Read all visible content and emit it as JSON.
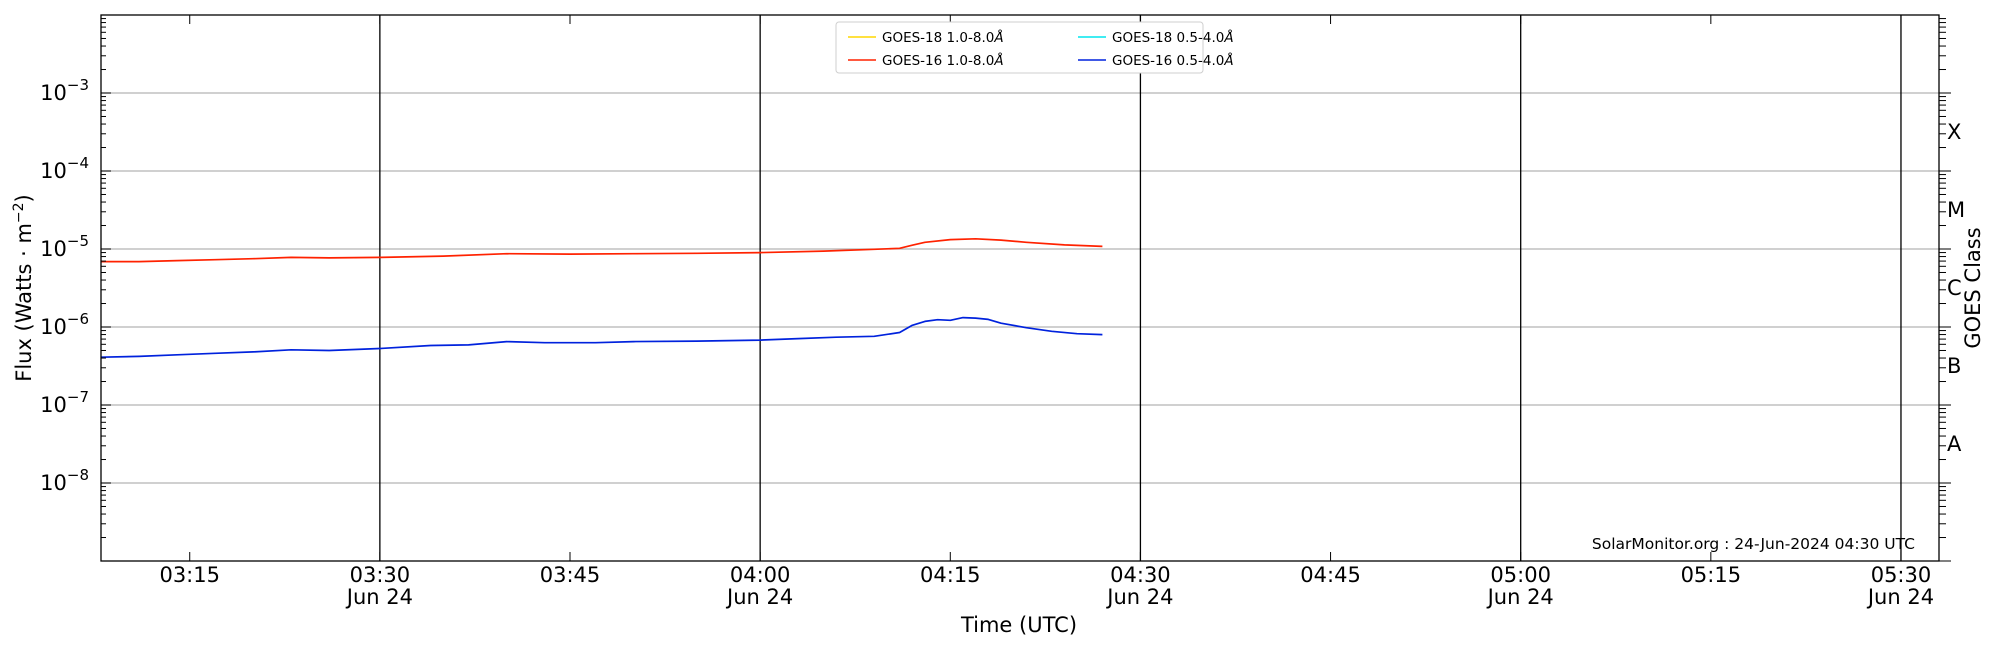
{
  "chart_data": {
    "type": "line",
    "xlabel": "Time (UTC)",
    "ylabel_left": "Flux (Watts · m",
    "ylabel_left_sup": "−2",
    "ylabel_left_close": ")",
    "ylabel_right": "GOES Class",
    "y_scale": "log",
    "ylim": [
      1e-09,
      0.01
    ],
    "xlim": [
      "2024-06-24 03:08",
      "2024-06-24 05:33"
    ],
    "grid": "horizontal at decades",
    "legend_placement": "top-center",
    "credit": "SolarMonitor.org : 24-Jun-2024 04:30 UTC",
    "x_ticks": [
      {
        "time": "03:15",
        "date": ""
      },
      {
        "time": "03:30",
        "date": "Jun 24"
      },
      {
        "time": "03:45",
        "date": ""
      },
      {
        "time": "04:00",
        "date": "Jun 24"
      },
      {
        "time": "04:15",
        "date": ""
      },
      {
        "time": "04:30",
        "date": "Jun 24"
      },
      {
        "time": "04:45",
        "date": ""
      },
      {
        "time": "05:00",
        "date": "Jun 24"
      },
      {
        "time": "05:15",
        "date": ""
      },
      {
        "time": "05:30",
        "date": "Jun 24"
      }
    ],
    "vertical_lines_at": [
      "03:30",
      "04:00",
      "04:30",
      "05:00",
      "05:30"
    ],
    "y_ticks": [
      {
        "base": "10",
        "exp": "−3",
        "value": 0.001
      },
      {
        "base": "10",
        "exp": "−4",
        "value": 0.0001
      },
      {
        "base": "10",
        "exp": "−5",
        "value": 1e-05
      },
      {
        "base": "10",
        "exp": "−6",
        "value": 1e-06
      },
      {
        "base": "10",
        "exp": "−7",
        "value": 1e-07
      },
      {
        "base": "10",
        "exp": "−8",
        "value": 1e-08
      }
    ],
    "goes_classes": [
      {
        "label": "X",
        "low": 0.0001,
        "high": 0.001
      },
      {
        "label": "M",
        "low": 1e-05,
        "high": 0.0001
      },
      {
        "label": "C",
        "low": 1e-06,
        "high": 1e-05
      },
      {
        "label": "B",
        "low": 1e-07,
        "high": 1e-06
      },
      {
        "label": "A",
        "low": 1e-08,
        "high": 1e-07
      }
    ],
    "series": [
      {
        "name": "GOES-18 1.0-8.0",
        "unit": "Å",
        "color": "#ffd700",
        "points": []
      },
      {
        "name": "GOES-18 0.5-4.0",
        "unit": "Å",
        "color": "#00e5ee",
        "points": []
      },
      {
        "name": "GOES-16 1.0-8.0",
        "unit": "Å",
        "color": "#ff2200",
        "points": [
          [
            "03:08",
            6.9e-06
          ],
          [
            "03:11",
            6.9e-06
          ],
          [
            "03:14",
            7.1e-06
          ],
          [
            "03:17",
            7.3e-06
          ],
          [
            "03:20",
            7.5e-06
          ],
          [
            "03:23",
            7.8e-06
          ],
          [
            "03:26",
            7.7e-06
          ],
          [
            "03:30",
            7.8e-06
          ],
          [
            "03:35",
            8.1e-06
          ],
          [
            "03:40",
            8.7e-06
          ],
          [
            "03:45",
            8.6e-06
          ],
          [
            "03:50",
            8.7e-06
          ],
          [
            "03:55",
            8.8e-06
          ],
          [
            "04:00",
            9e-06
          ],
          [
            "04:05",
            9.4e-06
          ],
          [
            "04:09",
            9.9e-06
          ],
          [
            "04:11",
            1.02e-05
          ],
          [
            "04:12",
            1.12e-05
          ],
          [
            "04:13",
            1.22e-05
          ],
          [
            "04:15",
            1.32e-05
          ],
          [
            "04:17",
            1.35e-05
          ],
          [
            "04:19",
            1.3e-05
          ],
          [
            "04:21",
            1.22e-05
          ],
          [
            "04:24",
            1.13e-05
          ],
          [
            "04:27",
            1.08e-05
          ]
        ]
      },
      {
        "name": "GOES-16 0.5-4.0",
        "unit": "Å",
        "color": "#0022dd",
        "points": [
          [
            "03:08",
            4.1e-07
          ],
          [
            "03:11",
            4.2e-07
          ],
          [
            "03:14",
            4.4e-07
          ],
          [
            "03:17",
            4.6e-07
          ],
          [
            "03:20",
            4.8e-07
          ],
          [
            "03:23",
            5.1e-07
          ],
          [
            "03:26",
            5e-07
          ],
          [
            "03:30",
            5.3e-07
          ],
          [
            "03:34",
            5.8e-07
          ],
          [
            "03:37",
            5.9e-07
          ],
          [
            "03:40",
            6.5e-07
          ],
          [
            "03:43",
            6.3e-07
          ],
          [
            "03:47",
            6.3e-07
          ],
          [
            "03:50",
            6.5e-07
          ],
          [
            "03:55",
            6.6e-07
          ],
          [
            "04:00",
            6.8e-07
          ],
          [
            "04:03",
            7.1e-07
          ],
          [
            "04:06",
            7.4e-07
          ],
          [
            "04:09",
            7.6e-07
          ],
          [
            "04:11",
            8.5e-07
          ],
          [
            "04:12",
            1.05e-06
          ],
          [
            "04:13",
            1.18e-06
          ],
          [
            "04:14",
            1.24e-06
          ],
          [
            "04:15",
            1.22e-06
          ],
          [
            "04:16",
            1.32e-06
          ],
          [
            "04:17",
            1.3e-06
          ],
          [
            "04:18",
            1.25e-06
          ],
          [
            "04:19",
            1.12e-06
          ],
          [
            "04:21",
            9.8e-07
          ],
          [
            "04:23",
            8.8e-07
          ],
          [
            "04:25",
            8.2e-07
          ],
          [
            "04:27",
            8e-07
          ]
        ]
      }
    ]
  }
}
